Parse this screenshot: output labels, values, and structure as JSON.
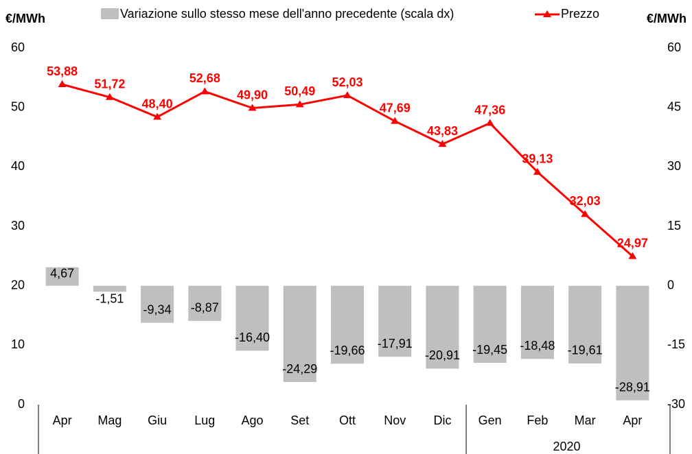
{
  "chart_data": {
    "type": "bar_line",
    "y_label": "€/MWh",
    "y2_label": "€/MWh",
    "categories": [
      "Apr",
      "Mag",
      "Giu",
      "Lug",
      "Ago",
      "Set",
      "Ott",
      "Nov",
      "Dic",
      "Gen",
      "Feb",
      "Mar",
      "Apr"
    ],
    "groups": [
      {
        "label": "2020",
        "from": 9
      }
    ],
    "ylim": [
      0,
      60
    ],
    "yticks": [
      0,
      10,
      20,
      30,
      40,
      50,
      60
    ],
    "y2lim": [
      -30,
      60
    ],
    "y2ticks": [
      -30,
      -15,
      0,
      15,
      30,
      45,
      60
    ],
    "series": [
      {
        "name": "Variazione sullo stesso mese dell'anno precedente (scala dx)",
        "type": "bar",
        "axis": "y2",
        "color": "#bfbfbf",
        "values": [
          4.67,
          -1.51,
          -9.34,
          -8.87,
          -16.4,
          -24.29,
          -19.66,
          -17.91,
          -20.91,
          -19.45,
          -18.48,
          -19.61,
          -28.91
        ],
        "value_labels": [
          "4,67",
          "-1,51",
          "-9,34",
          "-8,87",
          "-16,40",
          "-24,29",
          "-19,66",
          "-17,91",
          "-20,91",
          "-19,45",
          "-18,48",
          "-19,61",
          "-28,91"
        ]
      },
      {
        "name": "Prezzo",
        "type": "line",
        "axis": "y",
        "color": "#ff0000",
        "values": [
          53.88,
          51.72,
          48.4,
          52.68,
          49.9,
          50.49,
          52.03,
          47.69,
          43.83,
          47.36,
          39.13,
          32.03,
          24.97
        ],
        "value_labels": [
          "53,88",
          "51,72",
          "48,40",
          "52,68",
          "49,90",
          "50,49",
          "52,03",
          "47,69",
          "43,83",
          "47,36",
          "39,13",
          "32,03",
          "24,97"
        ]
      }
    ]
  }
}
